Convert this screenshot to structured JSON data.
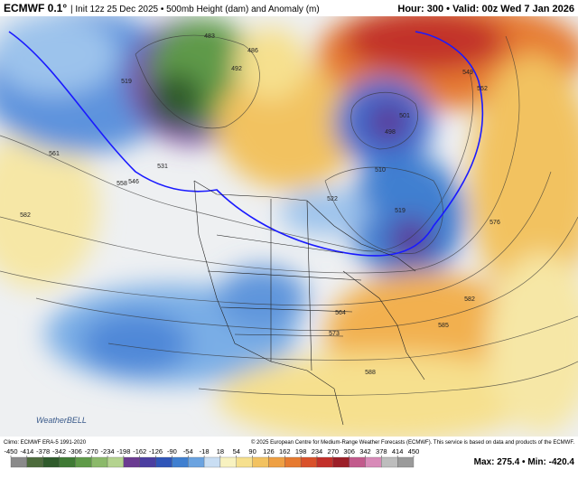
{
  "header": {
    "model": "ECMWF 0.1°",
    "description": "| Init 12z 25 Dec 2025 • 500mb Height (dam) and Anomaly (m)",
    "valid": "Hour: 300 • Valid: 00z Wed 7 Jan 2026"
  },
  "contour_labels": [
    "519",
    "531",
    "546",
    "558",
    "561",
    "582",
    "483",
    "492",
    "486",
    "501",
    "498",
    "510",
    "519",
    "522",
    "549",
    "552",
    "576",
    "582",
    "585",
    "573",
    "564",
    "588"
  ],
  "footer": {
    "climo": "Climo: ECMWF ERA-5 1991-2020",
    "copyright": "© 2025 European Centre for Medium-Range Weather Forecasts (ECMWF). This service is based on data and products of the ECMWF.",
    "logo": "WeatherBELL",
    "stats": "Max: 275.4 • Min: -420.4"
  },
  "colorbar": {
    "ticks": [
      -450,
      -414,
      -378,
      -342,
      -306,
      -270,
      -234,
      -198,
      -162,
      -126,
      -90,
      -54,
      -18,
      18,
      54,
      90,
      126,
      162,
      198,
      234,
      270,
      306,
      342,
      378,
      414,
      450
    ],
    "colors": [
      "#8a8a8a",
      "#4d6b3c",
      "#2f5a2b",
      "#3f7a34",
      "#5f9a48",
      "#8bb96a",
      "#b4d38f",
      "#6b3b91",
      "#4b3ea0",
      "#2f55b8",
      "#3f7fd0",
      "#6ba3e0",
      "#c9def3",
      "#f8f2c0",
      "#f6e08e",
      "#f2c260",
      "#eea044",
      "#e67a30",
      "#d9512a",
      "#c2302a",
      "#9c1f28",
      "#c25a8c",
      "#d88ab8",
      "#bdbdbd",
      "#9a9a9a"
    ]
  }
}
